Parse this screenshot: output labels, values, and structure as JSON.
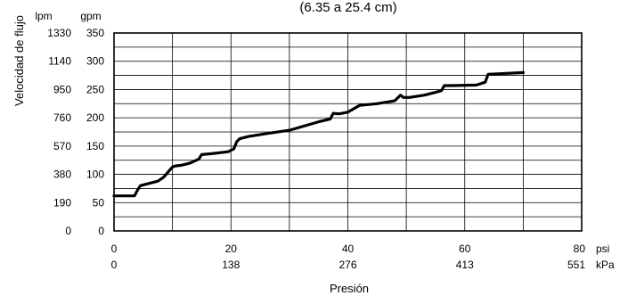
{
  "chart_data": {
    "type": "line",
    "subtitle": "(6.35 a 25.4 cm)",
    "xlabel": "Presión",
    "ylabel": "Velocidad de flujo",
    "x_unit_primary": "psi",
    "x_unit_secondary": "kPa",
    "y_unit_primary": "gpm",
    "y_unit_secondary": "lpm",
    "xlim": [
      0,
      80
    ],
    "ylim": [
      0,
      350
    ],
    "grid": true,
    "x_ticks_psi": [
      "0",
      "20",
      "40",
      "60",
      "80"
    ],
    "x_ticks_kpa": [
      "0",
      "138",
      "276",
      "413",
      "551"
    ],
    "y_ticks_gpm": [
      "0",
      "50",
      "100",
      "150",
      "200",
      "250",
      "300",
      "350"
    ],
    "y_ticks_lpm": [
      "0",
      "190",
      "380",
      "570",
      "760",
      "950",
      "1140",
      "1330"
    ],
    "x_gridlines": [
      0,
      10,
      20,
      30,
      40,
      50,
      60,
      70,
      80
    ],
    "y_gridlines": [
      0,
      25,
      50,
      75,
      100,
      125,
      150,
      175,
      200,
      225,
      250,
      275,
      300,
      325,
      350
    ],
    "series": [
      {
        "x": [
          0,
          3.5,
          4.0,
          4.5,
          6.0,
          7.5,
          8.5,
          9.5,
          10.0,
          10.5,
          11.5,
          13.0,
          14.5,
          15.0,
          17.0,
          19.5,
          20.5,
          21.0,
          21.5,
          23.0,
          26.0,
          30.0,
          35.0,
          37.0,
          37.5,
          38.5,
          40.0,
          42.0,
          45.0,
          48.0,
          49.0,
          49.5,
          50.5,
          53.0,
          55.0,
          56.0,
          56.5,
          58.0,
          62.0,
          63.5,
          64.0,
          66.0,
          70.0
        ],
        "y": [
          62,
          62,
          72,
          80,
          84,
          88,
          95,
          107,
          113,
          115,
          116,
          120,
          127,
          135,
          137,
          140,
          145,
          158,
          163,
          167,
          172,
          178,
          193,
          198,
          208,
          207,
          210,
          222,
          225,
          230,
          240,
          236,
          236,
          240,
          245,
          248,
          257,
          257,
          258,
          263,
          277,
          278,
          280
        ]
      }
    ]
  }
}
